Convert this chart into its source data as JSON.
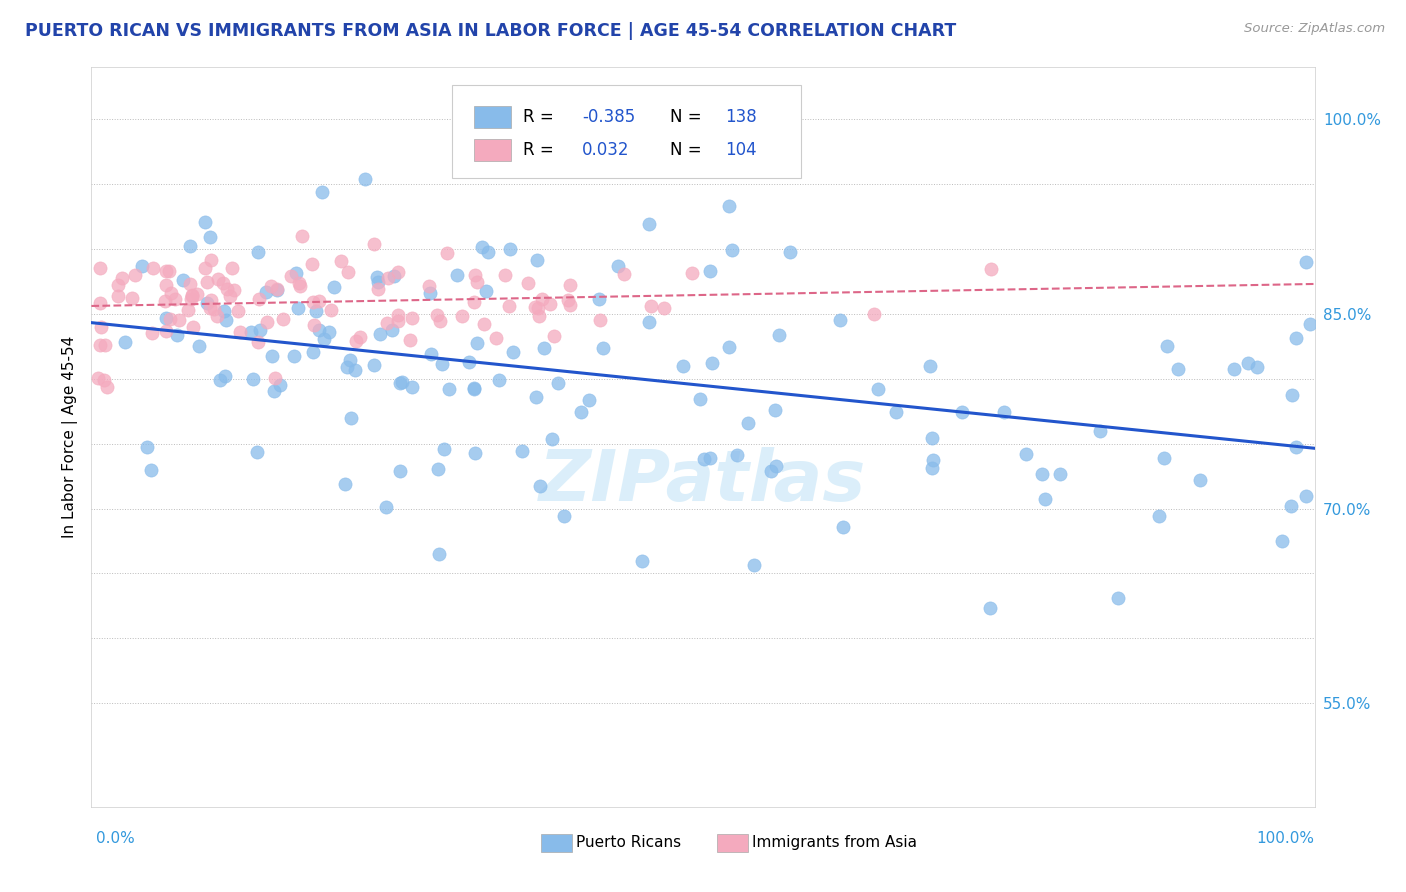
{
  "title": "PUERTO RICAN VS IMMIGRANTS FROM ASIA IN LABOR FORCE | AGE 45-54 CORRELATION CHART",
  "source": "Source: ZipAtlas.com",
  "ylabel": "In Labor Force | Age 45-54",
  "y_ticks": [
    0.55,
    0.6,
    0.65,
    0.7,
    0.75,
    0.8,
    0.85,
    0.9,
    0.95,
    1.0
  ],
  "y_tick_labels": [
    "55.0%",
    "",
    "",
    "70.0%",
    "",
    "",
    "85.0%",
    "",
    "",
    "100.0%"
  ],
  "x_range": [
    0.0,
    1.0
  ],
  "y_range": [
    0.47,
    1.04
  ],
  "legend_blue_r": "-0.385",
  "legend_blue_n": "138",
  "legend_pink_r": "0.032",
  "legend_pink_n": "104",
  "blue_color": "#88BBEA",
  "pink_color": "#F4AABE",
  "blue_line_color": "#2255CC",
  "pink_line_color": "#DD6688",
  "watermark": "ZIPatlas",
  "blue_scatter_seed": 42,
  "pink_scatter_seed": 7
}
